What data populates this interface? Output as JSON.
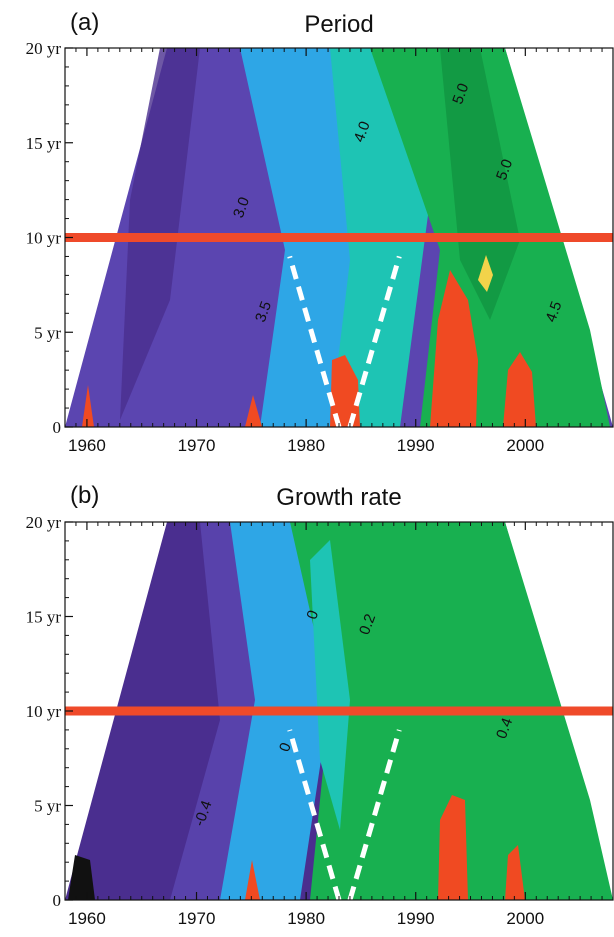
{
  "colors": {
    "purple_dark": "#4a2e8f",
    "purple": "#5b45b0",
    "blue_violet": "#4b6fd0",
    "sky": "#2ea6e6",
    "teal": "#1ec4b4",
    "green": "#18b050",
    "green_dark": "#129a44",
    "red": "#f04a22",
    "yellow": "#f2d34a",
    "line_red": "#ef4a2a",
    "dash": "#ffffff"
  },
  "chart_data": [
    {
      "type": "heatmap",
      "panel_label": "(a)",
      "title": "Period",
      "x_ticks": [
        1960,
        1970,
        1980,
        1990,
        2000
      ],
      "xlim": [
        1958,
        2008
      ],
      "y_ticks": [
        {
          "value": 0,
          "label": "0"
        },
        {
          "value": 5,
          "label": "5 yr"
        },
        {
          "value": 10,
          "label": "10 yr"
        },
        {
          "value": 15,
          "label": "15 yr"
        },
        {
          "value": 20,
          "label": "20 yr"
        }
      ],
      "ylim": [
        0,
        20
      ],
      "hline_y": 10,
      "dashed_lines": [
        {
          "x": [
            1983,
            1978.5
          ],
          "y": [
            0,
            9
          ]
        },
        {
          "x": [
            1984,
            1988.5
          ],
          "y": [
            0,
            9
          ]
        }
      ],
      "contour_labels": [
        {
          "text": "3.0",
          "x": 1974.5,
          "y": 11.5
        },
        {
          "text": "3.5",
          "x": 1976.5,
          "y": 6.0
        },
        {
          "text": "4.0",
          "x": 1985.5,
          "y": 15.5
        },
        {
          "text": "5.0",
          "x": 1994.5,
          "y": 17.5
        },
        {
          "text": "5.0",
          "x": 1998.5,
          "y": 13.5
        },
        {
          "text": "4.5",
          "x": 2003,
          "y": 6.0
        }
      ],
      "regions": [
        {
          "color": "purple",
          "x": [
            1958,
            1983
          ],
          "y": [
            0,
            20
          ]
        },
        {
          "color": "sky",
          "x": [
            1976,
            1988
          ],
          "y": [
            0,
            20
          ]
        },
        {
          "color": "teal",
          "x": [
            1984,
            1996
          ],
          "y": [
            0,
            20
          ]
        },
        {
          "color": "green",
          "x": [
            1988,
            2008
          ],
          "y": [
            0,
            20
          ]
        },
        {
          "color": "red",
          "x": [
            1981.5,
            1984.5
          ],
          "y": [
            0,
            3
          ]
        },
        {
          "color": "red",
          "x": [
            1991,
            1996
          ],
          "y": [
            0,
            7
          ]
        },
        {
          "color": "red",
          "x": [
            1998,
            2002
          ],
          "y": [
            0,
            3
          ]
        },
        {
          "color": "yellow",
          "x": [
            1995,
            1997
          ],
          "y": [
            7,
            9
          ]
        }
      ]
    },
    {
      "type": "heatmap",
      "panel_label": "(b)",
      "title": "Growth rate",
      "x_ticks": [
        1960,
        1970,
        1980,
        1990,
        2000
      ],
      "xlim": [
        1958,
        2008
      ],
      "y_ticks": [
        {
          "value": 0,
          "label": "0"
        },
        {
          "value": 5,
          "label": "5 yr"
        },
        {
          "value": 10,
          "label": "10 yr"
        },
        {
          "value": 15,
          "label": "15 yr"
        },
        {
          "value": 20,
          "label": "20 yr"
        }
      ],
      "ylim": [
        0,
        20
      ],
      "hline_y": 10,
      "dashed_lines": [
        {
          "x": [
            1983,
            1978.5
          ],
          "y": [
            0,
            9
          ]
        },
        {
          "x": [
            1984,
            1988.5
          ],
          "y": [
            0,
            9
          ]
        }
      ],
      "contour_labels": [
        {
          "text": "0",
          "x": 1981,
          "y": 15.0
        },
        {
          "text": "0.2",
          "x": 1986,
          "y": 14.5
        },
        {
          "text": "0",
          "x": 1978.5,
          "y": 8.0
        },
        {
          "text": "-0.4",
          "x": 1971,
          "y": 4.5
        },
        {
          "text": "0.4",
          "x": 1998.5,
          "y": 9.0
        }
      ],
      "regions": [
        {
          "color": "purple",
          "x": [
            1958,
            1983
          ],
          "y": [
            0,
            20
          ]
        },
        {
          "color": "sky",
          "x": [
            1975,
            1985
          ],
          "y": [
            0,
            20
          ]
        },
        {
          "color": "green",
          "x": [
            1983,
            2008
          ],
          "y": [
            0,
            20
          ]
        },
        {
          "color": "red",
          "x": [
            1992,
            1995
          ],
          "y": [
            0,
            5
          ]
        },
        {
          "color": "red",
          "x": [
            1998,
            2001
          ],
          "y": [
            0,
            2
          ]
        },
        {
          "color": "red",
          "x": [
            1976,
            1978
          ],
          "y": [
            0,
            1
          ]
        }
      ]
    }
  ]
}
